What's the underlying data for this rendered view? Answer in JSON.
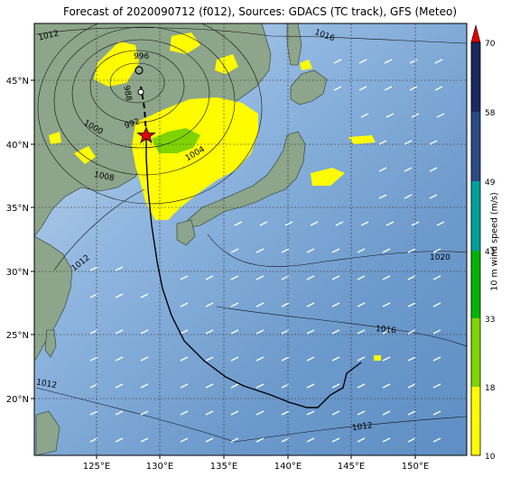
{
  "title": "Forecast of 2020090712 (f012), Sources: GDACS (TC track), GFS (Meteo)",
  "lon_ticks": [
    "125°E",
    "130°E",
    "135°E",
    "140°E",
    "145°E",
    "150°E"
  ],
  "lat_ticks": [
    "45°N",
    "40°N",
    "35°N",
    "30°N",
    "25°N",
    "20°N"
  ],
  "isobar_labels": [
    "1012",
    "1016",
    "996",
    "988",
    "992",
    "1004",
    "1008",
    "1000",
    "1012",
    "1020",
    "1016",
    "1012",
    "1012"
  ],
  "colorbar": {
    "title": "10 m wind speed (m/s)",
    "ticks": [
      "70",
      "58",
      "49",
      "43",
      "33",
      "18",
      "10"
    ],
    "colors": [
      "#fffc00",
      "#7fd400",
      "#00b400",
      "#00a09a",
      "#3d6aa6",
      "#2a4a80",
      "#1a2a5c"
    ],
    "extend_color": "#e00000"
  },
  "colors": {
    "ocean": "#7fa8d4",
    "land": "#8da58a",
    "track": "#000000",
    "storm_marker": "#e00000"
  }
}
